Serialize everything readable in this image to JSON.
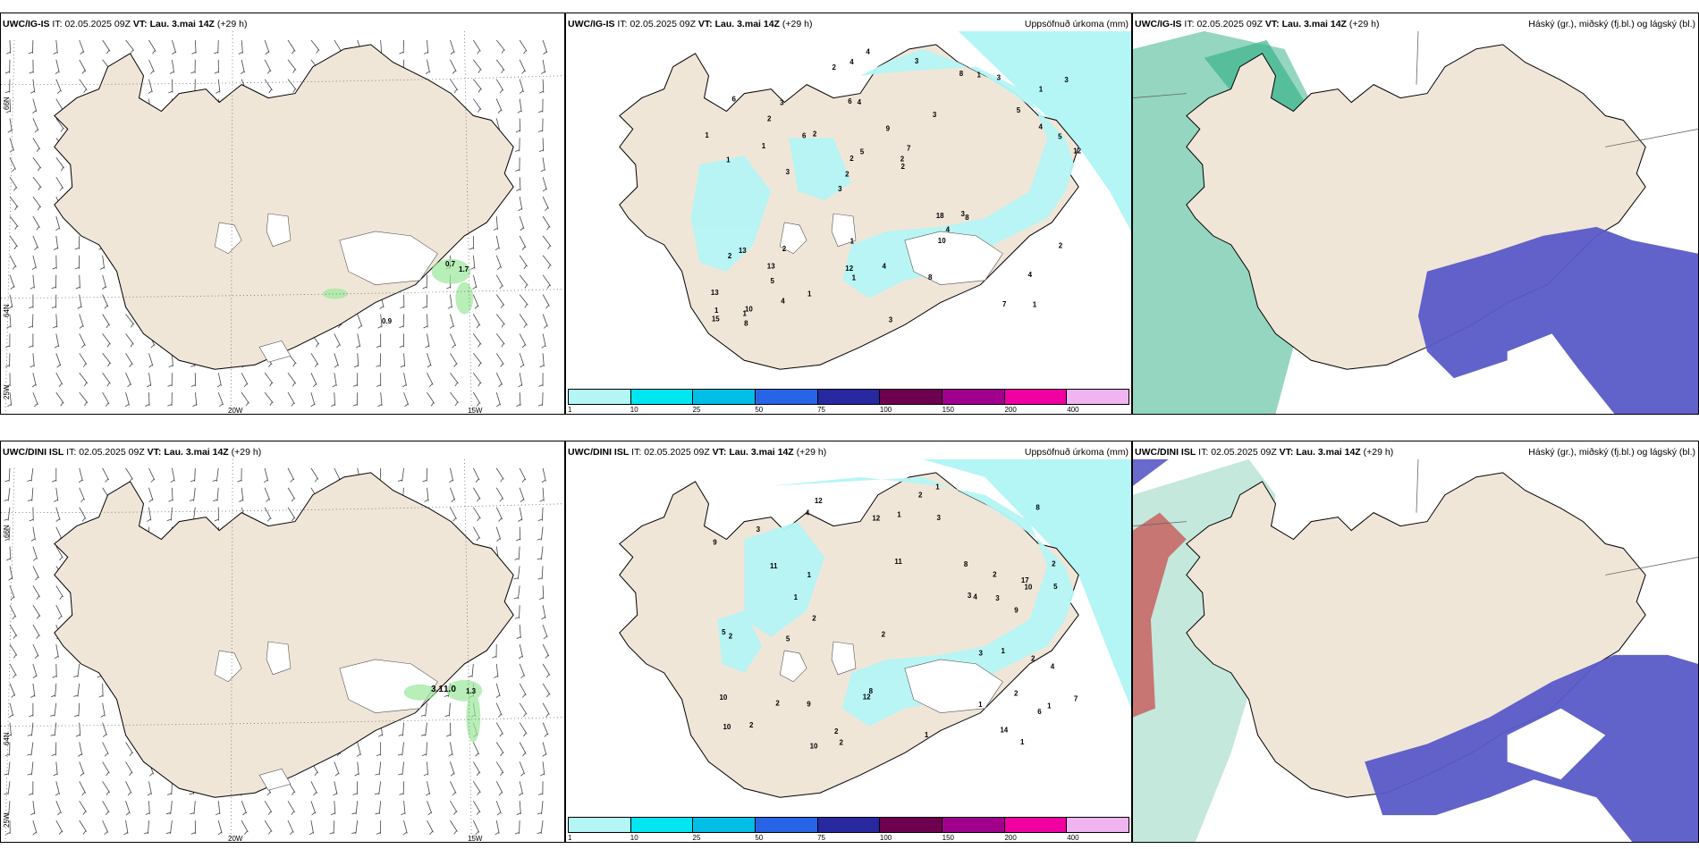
{
  "rows": [
    {
      "model": "UWC/IG-IS",
      "it_label": "IT:",
      "it_value": "02.05.2025 09Z",
      "vt_label": "VT:",
      "vt_value": "Lau. 3.mai 14Z",
      "lead": "(+29 h)"
    },
    {
      "model": "UWC/DINI ISL",
      "it_label": "IT:",
      "it_value": "02.05.2025 09Z",
      "vt_label": "VT:",
      "vt_value": "Lau. 3.mai 14Z",
      "lead": "(+29 h)"
    }
  ],
  "precip_title": "Uppsöfnuð úrkoma (mm)",
  "cloud_title": "Háský (gr.), miðský (fj.bl.) og lágský (bl.)",
  "graticule": {
    "lat_66": "66N",
    "lat_64": "64N",
    "lon_25": "25W",
    "lon_20": "20W",
    "lon_15": "15W"
  },
  "colorbar": {
    "ticks": [
      "1",
      "10",
      "25",
      "50",
      "75",
      "100",
      "150",
      "200",
      "400"
    ],
    "colors": [
      "#b4f5f5",
      "#00e6f0",
      "#00bee6",
      "#2864e6",
      "#2828a0",
      "#6e0050",
      "#a0008c",
      "#f000a0",
      "#f0b4f0"
    ]
  },
  "wind_labels_top": [
    "0.7",
    "1.7",
    "0.9"
  ],
  "wind_labels_bottom": [
    "1.0",
    "3.1",
    "1.3"
  ],
  "precip_values_top": [
    "1",
    "1",
    "1",
    "3",
    "3",
    "10",
    "6",
    "9",
    "13",
    "2",
    "13",
    "5",
    "4",
    "7",
    "8",
    "6",
    "4",
    "12",
    "18",
    "4",
    "2",
    "12",
    "2",
    "3",
    "8",
    "2",
    "7",
    "4",
    "3",
    "3",
    "6",
    "1",
    "10",
    "4",
    "5",
    "2",
    "1",
    "1",
    "2",
    "2",
    "5",
    "3",
    "4",
    "8",
    "13",
    "8",
    "15",
    "4",
    "3",
    "4",
    "3",
    "1",
    "2",
    "1",
    "1",
    "3",
    "2",
    "5",
    "2",
    "1",
    "1"
  ],
  "precip_values_bottom": [
    "2",
    "2",
    "1",
    "11",
    "10",
    "12",
    "17",
    "9",
    "8",
    "11",
    "5",
    "9",
    "9",
    "2",
    "10",
    "3",
    "6",
    "4",
    "8",
    "10",
    "5",
    "2",
    "1",
    "3",
    "2",
    "12",
    "2",
    "3",
    "8",
    "7",
    "5",
    "1",
    "10",
    "2",
    "2",
    "14",
    "4",
    "12",
    "1",
    "2",
    "1",
    "3",
    "1",
    "1",
    "4",
    "3",
    "2",
    "1",
    "1",
    "2",
    "2"
  ],
  "colors": {
    "land": "#f0e6d8",
    "sea": "#ffffff",
    "precip_light": "#b4f5f5",
    "high_cloud": "#4682b4",
    "low_cloud": "#5a5ac8",
    "mid_cloud": "#3cb48c"
  }
}
